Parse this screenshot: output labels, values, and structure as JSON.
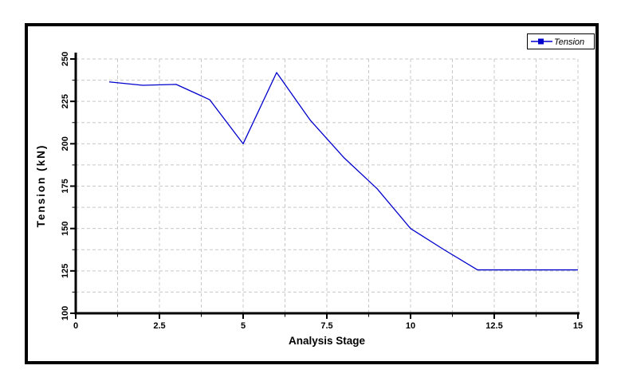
{
  "chart_data": {
    "type": "line",
    "title": "",
    "xlabel": "Analysis Stage",
    "ylabel": "Tension (kN)",
    "xlim": [
      0,
      15
    ],
    "ylim": [
      100,
      250
    ],
    "x_major_ticks": [
      0,
      2.5,
      5,
      7.5,
      10,
      12.5,
      15
    ],
    "y_major_ticks": [
      100,
      125,
      150,
      175,
      200,
      225,
      250
    ],
    "x_minor_step": 1.25,
    "y_minor_step": 12.5,
    "grid": {
      "style": "dashed",
      "on": true,
      "at": "minor-intervals"
    },
    "legend": {
      "position": "top-right",
      "entries": [
        {
          "label": "Tension",
          "color": "#0000cc",
          "marker": "square"
        }
      ]
    },
    "series": [
      {
        "name": "Tension",
        "color": "#0000cc",
        "x": [
          1,
          2,
          3,
          4,
          5,
          6,
          7,
          8,
          9,
          10,
          11,
          12,
          13,
          14,
          15
        ],
        "values": [
          236.5,
          234.5,
          235,
          226,
          200,
          242,
          214,
          192,
          173.5,
          150,
          137.5,
          125.6,
          125.6,
          125.6,
          125.6
        ]
      }
    ]
  },
  "colors": {
    "line": "#0000cc",
    "grid": "#c8c8c8",
    "axis": "#000000",
    "text": "#000000",
    "background": "#ffffff",
    "frame_border": "#000000",
    "legend_border": "#000000"
  }
}
